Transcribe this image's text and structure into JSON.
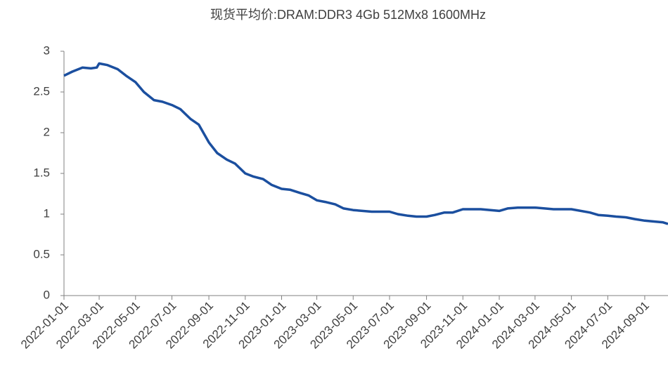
{
  "chart_data": {
    "type": "line",
    "title": "现货平均价:DRAM:DDR3 4Gb 512Mx8 1600MHz",
    "x": [
      "2022-01-01",
      "2022-01-15",
      "2022-02-01",
      "2022-02-15",
      "2022-02-25",
      "2022-03-01",
      "2022-03-15",
      "2022-04-01",
      "2022-04-15",
      "2022-05-01",
      "2022-05-15",
      "2022-06-01",
      "2022-06-15",
      "2022-07-01",
      "2022-07-15",
      "2022-08-01",
      "2022-08-15",
      "2022-09-01",
      "2022-09-15",
      "2022-10-01",
      "2022-10-15",
      "2022-11-01",
      "2022-11-15",
      "2022-12-01",
      "2022-12-15",
      "2023-01-01",
      "2023-01-15",
      "2023-02-01",
      "2023-02-15",
      "2023-03-01",
      "2023-03-15",
      "2023-04-01",
      "2023-04-15",
      "2023-05-01",
      "2023-06-01",
      "2023-06-15",
      "2023-07-01",
      "2023-07-15",
      "2023-08-01",
      "2023-08-15",
      "2023-09-01",
      "2023-09-15",
      "2023-10-01",
      "2023-10-15",
      "2023-11-01",
      "2023-12-01",
      "2024-01-01",
      "2024-01-15",
      "2024-02-01",
      "2024-03-01",
      "2024-04-01",
      "2024-05-01",
      "2024-06-01",
      "2024-06-15",
      "2024-07-01",
      "2024-07-15",
      "2024-08-01",
      "2024-08-15",
      "2024-09-01",
      "2024-09-15",
      "2024-10-01",
      "2024-10-10"
    ],
    "series": [
      {
        "name": "现货平均价:DRAM:DDR3 4Gb 512Mx8 1600MHz",
        "color": "#1b4f9f",
        "values": [
          2.7,
          2.75,
          2.8,
          2.79,
          2.8,
          2.85,
          2.83,
          2.78,
          2.7,
          2.62,
          2.5,
          2.4,
          2.38,
          2.34,
          2.29,
          2.17,
          2.1,
          1.88,
          1.75,
          1.67,
          1.62,
          1.5,
          1.46,
          1.43,
          1.36,
          1.31,
          1.3,
          1.26,
          1.23,
          1.17,
          1.15,
          1.12,
          1.07,
          1.05,
          1.03,
          1.03,
          1.03,
          1.0,
          0.98,
          0.97,
          0.97,
          0.99,
          1.02,
          1.02,
          1.06,
          1.06,
          1.04,
          1.07,
          1.08,
          1.08,
          1.06,
          1.06,
          1.02,
          0.99,
          0.98,
          0.97,
          0.96,
          0.94,
          0.92,
          0.91,
          0.9,
          0.88
        ]
      }
    ],
    "xlim": [
      "2022-01-01",
      "2024-10-10"
    ],
    "xticks": [
      "2022-01-01",
      "2022-03-01",
      "2022-05-01",
      "2022-07-01",
      "2022-09-01",
      "2022-11-01",
      "2023-01-01",
      "2023-03-01",
      "2023-05-01",
      "2023-07-01",
      "2023-09-01",
      "2023-11-01",
      "2024-01-01",
      "2024-03-01",
      "2024-05-01",
      "2024-07-01",
      "2024-09-01"
    ],
    "ylim": [
      0,
      3
    ],
    "yticks": [
      0,
      0.5,
      1,
      1.5,
      2,
      2.5,
      3
    ],
    "grid": false
  }
}
